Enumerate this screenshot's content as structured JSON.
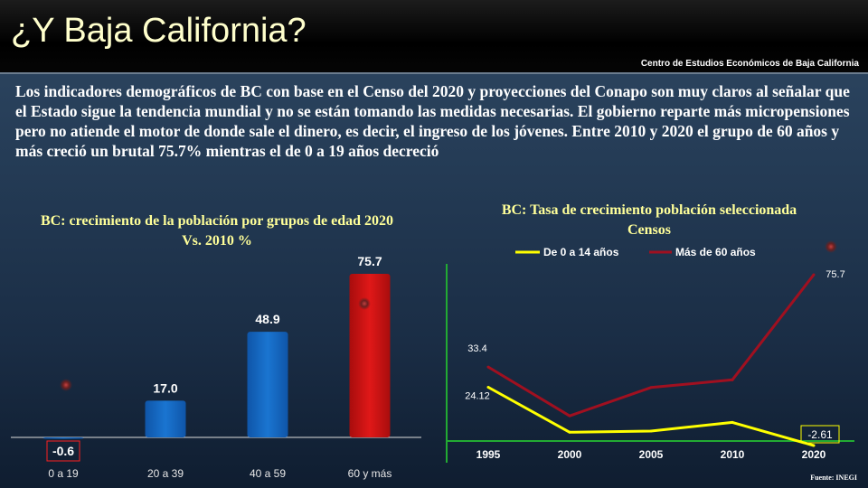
{
  "header": {
    "title": "¿Y Baja California?",
    "institution": "Centro de Estudios Económicos de Baja California"
  },
  "paragraph": "Los indicadores demográficos de BC con base en el Censo del 2020 y proyecciones del Conapo son muy claros al señalar que el Estado sigue la tendencia mundial y no se están tomando las medidas necesarias. El gobierno reparte más micropensiones pero no atiende el motor de donde sale el dinero, es decir, el ingreso de los jóvenes. Entre 2010 y 2020 el grupo de 60 años y más creció un brutal 75.7% mientras el de 0 a 19 años decreció",
  "source": "Fuente: INEGI",
  "colors": {
    "bar_blue": "#1a75d1",
    "bar_red": "#e01818",
    "line_yellow": "#ffff00",
    "line_darkred": "#a01020",
    "axis_green": "#22aa33"
  },
  "chart_data": [
    {
      "type": "bar",
      "title": "BC: crecimiento de la población por grupos de edad 2020 Vs. 2010 %",
      "categories": [
        "0 a 19",
        "20 a 39",
        "40 a 59",
        "60 y más"
      ],
      "values": [
        -0.6,
        17.0,
        48.9,
        75.7
      ],
      "value_labels": [
        "-0.6",
        "17.0",
        "48.9",
        "75.7"
      ],
      "ylim": [
        -5,
        80
      ]
    },
    {
      "type": "line",
      "title": "BC: Tasa de crecimiento población seleccionada Censos",
      "x": [
        "1995",
        "2000",
        "2005",
        "2010",
        "2020"
      ],
      "series": [
        {
          "name": "De 0 a 14 años",
          "values": [
            24.12,
            3.5,
            4.0,
            8.0,
            -2.61
          ],
          "labels": [
            "24.12",
            "",
            "",
            "",
            "-2.61"
          ]
        },
        {
          "name": "Más de 60 años",
          "values": [
            33.4,
            11.0,
            24.0,
            27.5,
            75.7
          ],
          "labels": [
            "33.4",
            "",
            "",
            "",
            "75.7"
          ]
        }
      ],
      "legend": "top",
      "ylim": [
        -5,
        85
      ]
    }
  ]
}
